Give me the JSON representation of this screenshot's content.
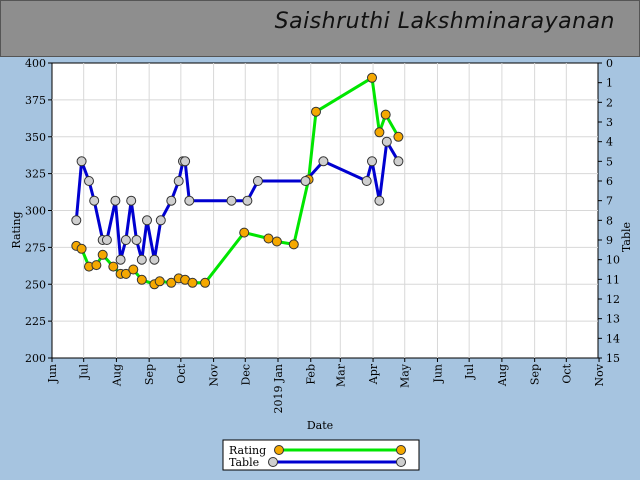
{
  "header": {
    "name": "Saishruthi Lakshminarayanan"
  },
  "colors": {
    "rating": "#00e600",
    "table": "#0000d0",
    "rating_marker": "#f5a800",
    "table_marker": "#cfcfcf",
    "grid": "#d8d8d8"
  },
  "chart_data": {
    "type": "line",
    "xlabel": "Date",
    "ylabel_left": "Rating",
    "ylabel_right": "Table",
    "ylim_left": [
      200,
      400
    ],
    "ylim_right": [
      15,
      0
    ],
    "y_ticks_left": [
      "200",
      "225",
      "250",
      "275",
      "300",
      "325",
      "350",
      "375",
      "400"
    ],
    "y_ticks_right": [
      "0",
      "1",
      "2",
      "3",
      "4",
      "5",
      "6",
      "7",
      "8",
      "9",
      "10",
      "11",
      "12",
      "13",
      "14",
      "15"
    ],
    "x_ticks": [
      "Jun",
      "Jul",
      "Aug",
      "Sep",
      "Oct",
      "Nov",
      "Dec",
      "2019 Jan",
      "Feb",
      "Mar",
      "Apr",
      "May",
      "Jun",
      "Jul",
      "Aug",
      "Sep",
      "Oct",
      "Nov"
    ],
    "series": [
      {
        "name": "Rating",
        "axis": "left",
        "x": [
          23,
          28,
          35,
          42,
          48,
          58,
          65,
          70,
          77,
          85,
          97,
          102,
          113,
          120,
          126,
          133,
          145,
          182,
          205,
          213,
          229,
          243,
          250,
          303,
          310,
          316,
          328
        ],
        "values": [
          276,
          274,
          262,
          263,
          270,
          262,
          257,
          257,
          260,
          253,
          250,
          252,
          251,
          254,
          253,
          251,
          251,
          285,
          281,
          279,
          277,
          321,
          367,
          390,
          353,
          365,
          350
        ]
      },
      {
        "name": "Table",
        "axis": "right",
        "x": [
          23,
          28,
          35,
          40,
          48,
          52,
          60,
          65,
          70,
          75,
          80,
          85,
          90,
          97,
          103,
          113,
          120,
          124,
          126,
          130,
          170,
          185,
          195,
          240,
          257,
          298,
          303,
          310,
          317,
          328
        ],
        "values": [
          8,
          5,
          6,
          7,
          9,
          9,
          7,
          10,
          9,
          7,
          9,
          10,
          8,
          10,
          8,
          7,
          6,
          5,
          5,
          7,
          7,
          7,
          6,
          6,
          5,
          6,
          5,
          7,
          4,
          5
        ]
      }
    ],
    "legend": {
      "position": "bottom-center",
      "entries": [
        "Rating",
        "Table"
      ]
    }
  }
}
